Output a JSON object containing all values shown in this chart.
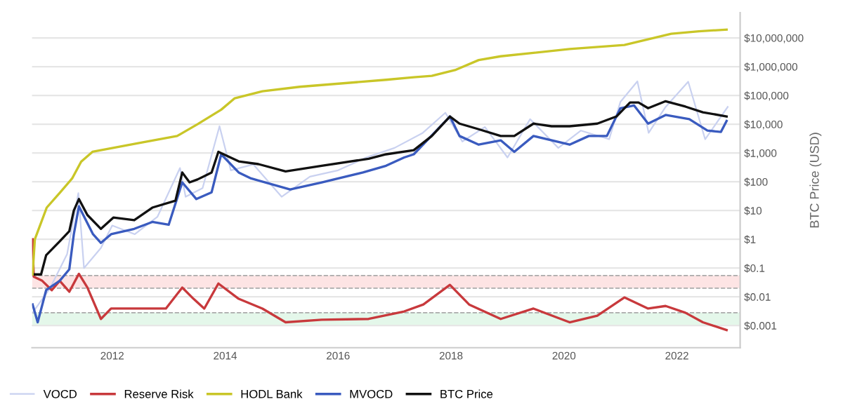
{
  "chart_data": {
    "type": "line",
    "ylabel": "BTC Price (USD)",
    "log": "y",
    "grid": "y",
    "legend": "bottom",
    "xlim": [
      2010.58,
      2023.12
    ],
    "xticks": [
      2012,
      2014,
      2016,
      2018,
      2020,
      2022
    ],
    "ylim": [
      0.00017,
      75000000
    ],
    "yticks": [
      {
        "value": 0.001,
        "label": "$0.001"
      },
      {
        "value": 0.01,
        "label": "$0.01"
      },
      {
        "value": 0.1,
        "label": "$0.1"
      },
      {
        "value": 1,
        "label": "$1"
      },
      {
        "value": 10,
        "label": "$10"
      },
      {
        "value": 100,
        "label": "$100"
      },
      {
        "value": 1000,
        "label": "$1,000"
      },
      {
        "value": 10000,
        "label": "$10,000"
      },
      {
        "value": 100000,
        "label": "$100,000"
      },
      {
        "value": 1000000,
        "label": "$1,000,000"
      },
      {
        "value": 10000000,
        "label": "$10,000,000"
      }
    ],
    "bands": [
      {
        "axis": "y",
        "from": 0.02,
        "to": 0.055,
        "color": "#fde4e4"
      },
      {
        "axis": "y",
        "from": 0.001,
        "to": 0.0028,
        "color": "#e4f7ea"
      }
    ],
    "series": [
      {
        "name": "VOCD",
        "color": "#c9d1f0",
        "x": [
          2010.6,
          2010.9,
          2011.2,
          2011.4,
          2011.5,
          2011.8,
          2012.0,
          2012.4,
          2012.8,
          2013.2,
          2013.3,
          2013.6,
          2013.9,
          2014.1,
          2014.5,
          2015.0,
          2015.5,
          2016.0,
          2016.5,
          2017.0,
          2017.5,
          2017.9,
          2018.2,
          2018.6,
          2019.0,
          2019.4,
          2019.9,
          2020.3,
          2020.8,
          2021.0,
          2021.3,
          2021.5,
          2021.8,
          2022.2,
          2022.5,
          2022.9
        ],
        "values": [
          0.003,
          0.02,
          0.3,
          40,
          0.1,
          0.5,
          3,
          1.5,
          6,
          300,
          30,
          60,
          8500,
          250,
          400,
          30,
          150,
          250,
          700,
          1500,
          5000,
          25000,
          2500,
          8000,
          700,
          15000,
          1500,
          6000,
          3000,
          60000,
          310000,
          5000,
          40000,
          300000,
          3000,
          40000
        ]
      },
      {
        "name": "Reserve Risk",
        "color": "#c8393c",
        "x": [
          2010.59,
          2010.61,
          2010.76,
          2010.93,
          2011.07,
          2011.24,
          2011.41,
          2011.56,
          2011.8,
          2011.98,
          2012.46,
          2012.95,
          2013.24,
          2013.44,
          2013.63,
          2013.88,
          2014.24,
          2014.66,
          2015.07,
          2015.71,
          2016.54,
          2017.17,
          2017.51,
          2017.98,
          2018.32,
          2018.88,
          2019.46,
          2020.1,
          2020.59,
          2021.07,
          2021.49,
          2021.8,
          2022.15,
          2022.46,
          2022.88
        ],
        "values": [
          1,
          0.05,
          0.036,
          0.017,
          0.036,
          0.015,
          0.063,
          0.021,
          0.0017,
          0.0039,
          0.0039,
          0.0039,
          0.021,
          0.0085,
          0.0039,
          0.029,
          0.0085,
          0.0039,
          0.0013,
          0.0016,
          0.0017,
          0.0031,
          0.0054,
          0.026,
          0.0054,
          0.0017,
          0.0039,
          0.0013,
          0.0022,
          0.0095,
          0.0039,
          0.0048,
          0.0028,
          0.0013,
          0.0007
        ]
      },
      {
        "name": "HODL Bank",
        "color": "#c9c628",
        "x": [
          2010.59,
          2010.63,
          2010.84,
          2011.08,
          2011.29,
          2011.45,
          2011.65,
          2012.46,
          2013.15,
          2013.51,
          2013.93,
          2014.17,
          2014.66,
          2015.32,
          2016.85,
          2017.34,
          2017.66,
          2018.07,
          2018.49,
          2018.88,
          2020.1,
          2021.07,
          2021.9,
          2022.39,
          2022.88
        ],
        "values": [
          0.06,
          1,
          12.6,
          43,
          130,
          500,
          1100,
          2200,
          3900,
          10000,
          32000,
          80000,
          140000,
          200000,
          350000,
          430000,
          480000,
          760000,
          1700000,
          2300000,
          4100000,
          5700000,
          14000000,
          17000000,
          19500000
        ]
      },
      {
        "name": "MVOCD",
        "color": "#3a5bbf",
        "x": [
          2010.59,
          2010.68,
          2010.83,
          2011.07,
          2011.24,
          2011.32,
          2011.41,
          2011.66,
          2011.8,
          2011.98,
          2012.39,
          2012.71,
          2013.0,
          2013.24,
          2013.49,
          2013.76,
          2013.93,
          2014.24,
          2014.46,
          2015.15,
          2015.71,
          2016.44,
          2016.85,
          2017.17,
          2017.34,
          2017.98,
          2018.15,
          2018.49,
          2018.88,
          2019.12,
          2019.46,
          2020.1,
          2020.44,
          2020.76,
          2021.0,
          2021.24,
          2021.49,
          2021.8,
          2022.22,
          2022.54,
          2022.78,
          2022.88
        ],
        "values": [
          0.0054,
          0.0013,
          0.017,
          0.036,
          0.09,
          1.5,
          14,
          1.5,
          0.75,
          1.5,
          2.3,
          4,
          3.2,
          95,
          25,
          43,
          900,
          210,
          130,
          54,
          95,
          210,
          360,
          700,
          900,
          18600,
          3900,
          1950,
          2750,
          1100,
          3900,
          1950,
          3900,
          3900,
          36000,
          45000,
          10500,
          21000,
          15000,
          6000,
          5400,
          13000
        ]
      },
      {
        "name": "BTC Price",
        "color": "#111111",
        "x": [
          2010.63,
          2010.74,
          2010.83,
          2011.07,
          2011.24,
          2011.32,
          2011.41,
          2011.56,
          2011.8,
          2012.02,
          2012.39,
          2012.71,
          2013.12,
          2013.24,
          2013.37,
          2013.51,
          2013.76,
          2013.88,
          2014.24,
          2014.59,
          2015.07,
          2015.71,
          2016.54,
          2016.85,
          2017.34,
          2017.66,
          2017.98,
          2018.15,
          2018.49,
          2018.88,
          2019.12,
          2019.46,
          2019.78,
          2020.1,
          2020.59,
          2020.93,
          2021.17,
          2021.32,
          2021.49,
          2021.8,
          2022.15,
          2022.46,
          2022.88
        ],
        "values": [
          0.06,
          0.06,
          0.28,
          0.85,
          1.9,
          10,
          25,
          7,
          2.3,
          5.7,
          4.6,
          12.6,
          22,
          210,
          95,
          120,
          210,
          1100,
          510,
          410,
          230,
          360,
          630,
          900,
          1250,
          3900,
          18600,
          10500,
          6700,
          3900,
          3900,
          10500,
          8500,
          8500,
          10500,
          18600,
          57000,
          57000,
          36000,
          63000,
          41000,
          26000,
          18600
        ]
      }
    ]
  }
}
